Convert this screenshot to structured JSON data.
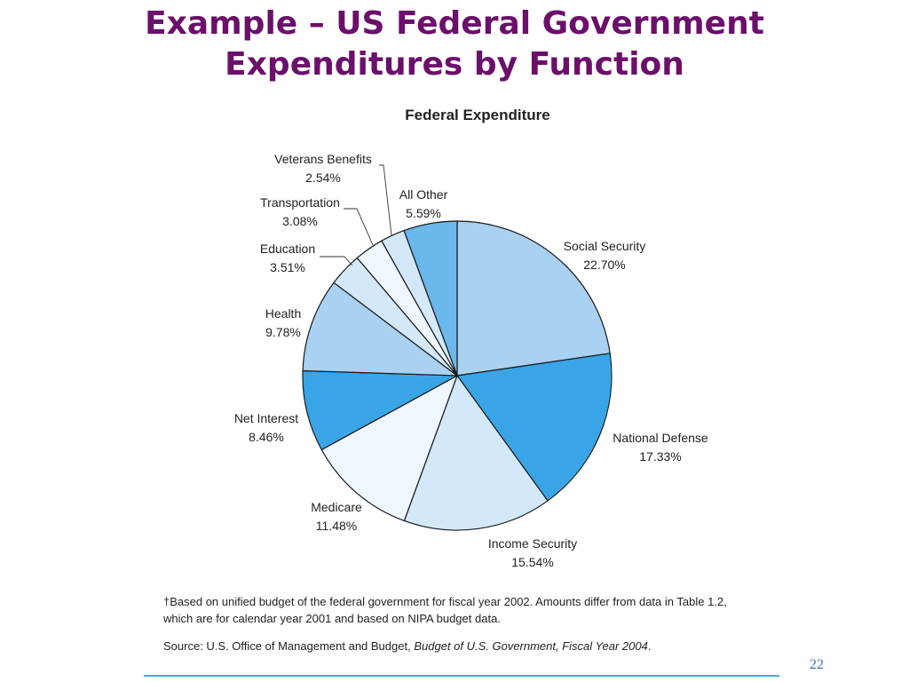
{
  "slide": {
    "title_line1": "Example – US Federal Government",
    "title_line2": "Expenditures by Function",
    "footnote_line1": "†Based on unified budget of the federal government for fiscal year 2002. Amounts differ from data in Table 1.2,",
    "footnote_line2": "which are for calendar year 2001 and based on NIPA budget data.",
    "source_prefix": "Source: U.S. Office of Management and Budget, ",
    "source_title": "Budget of U.S. Government, Fiscal Year 2004",
    "source_suffix": ".",
    "page_number": "22",
    "title_color": "#6b0f6b",
    "rule_color": "#4aa7dc"
  },
  "chart_data": {
    "type": "pie",
    "title": "Federal Expenditure",
    "slices": [
      {
        "label": "Social Security",
        "value": 22.7,
        "value_label": "22.70%",
        "color": "#a9d1f2"
      },
      {
        "label": "National Defense",
        "value": 17.33,
        "value_label": "17.33%",
        "color": "#3aa5e6"
      },
      {
        "label": "Income Security",
        "value": 15.54,
        "value_label": "15.54%",
        "color": "#d3e9fa"
      },
      {
        "label": "Medicare",
        "value": 11.48,
        "value_label": "11.48%",
        "color": "#eef7fe"
      },
      {
        "label": "Net Interest",
        "value": 8.46,
        "value_label": "8.46%",
        "color": "#3aa5e6"
      },
      {
        "label": "Health",
        "value": 9.78,
        "value_label": "9.78%",
        "color": "#a9d1f2"
      },
      {
        "label": "Education",
        "value": 3.51,
        "value_label": "3.51%",
        "color": "#d3e9fa"
      },
      {
        "label": "Transportation",
        "value": 3.08,
        "value_label": "3.08%",
        "color": "#eef7fe"
      },
      {
        "label": "Veterans Benefits",
        "value": 2.54,
        "value_label": "2.54%",
        "color": "#d3e9fa"
      },
      {
        "label": "All Other",
        "value": 5.59,
        "value_label": "5.59%",
        "color": "#6ab8ec"
      }
    ]
  }
}
